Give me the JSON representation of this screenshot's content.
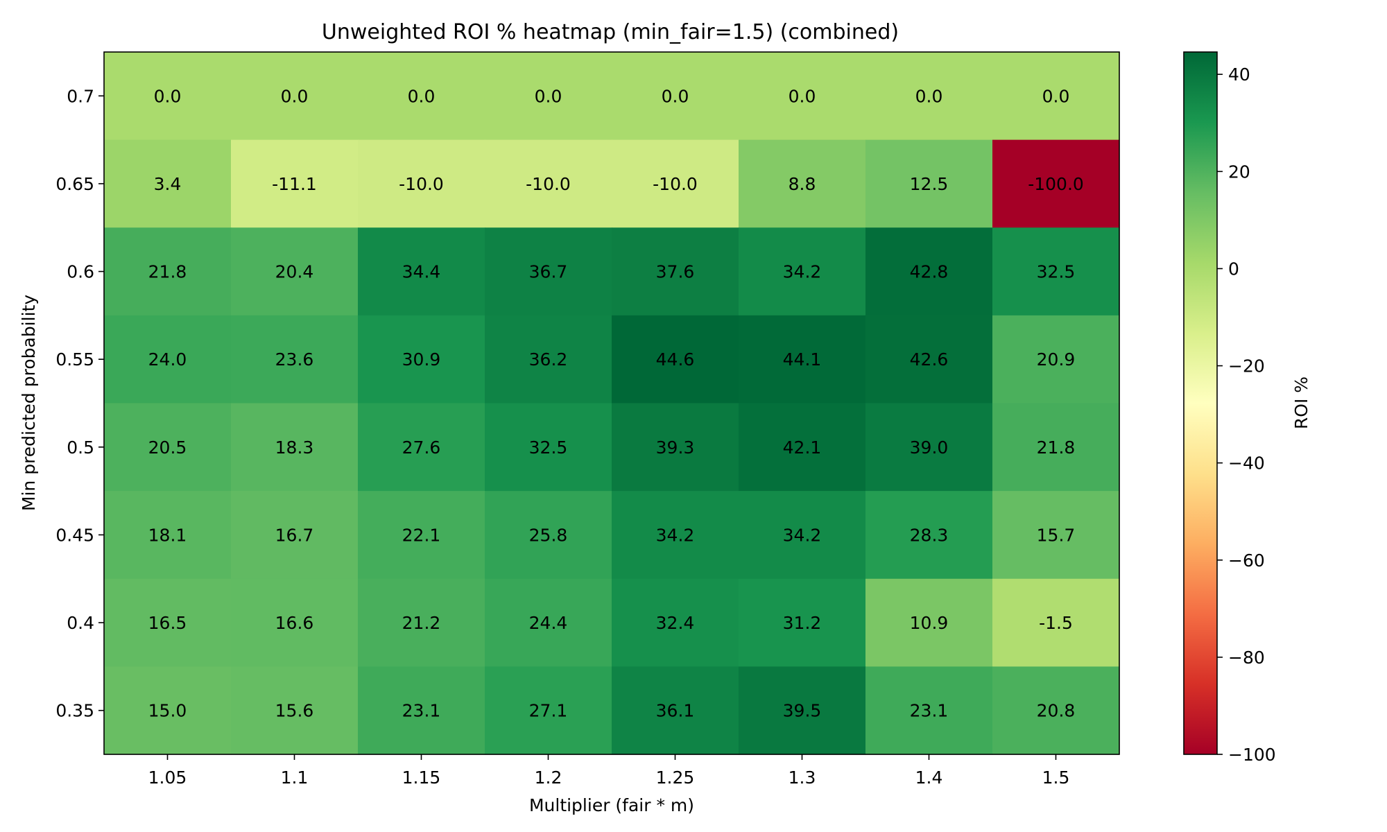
{
  "chart_data": {
    "type": "heatmap",
    "title": "Unweighted ROI % heatmap (min_fair=1.5) (combined)",
    "xlabel": "Multiplier (fair * m)",
    "ylabel": "Min predicted probability",
    "x_categories": [
      "1.05",
      "1.1",
      "1.15",
      "1.2",
      "1.25",
      "1.3",
      "1.4",
      "1.5"
    ],
    "y_categories": [
      "0.7",
      "0.65",
      "0.6",
      "0.55",
      "0.5",
      "0.45",
      "0.4",
      "0.35"
    ],
    "values": [
      [
        0.0,
        0.0,
        0.0,
        0.0,
        0.0,
        0.0,
        0.0,
        0.0
      ],
      [
        3.4,
        -11.1,
        -10.0,
        -10.0,
        -10.0,
        8.8,
        12.5,
        -100.0
      ],
      [
        21.8,
        20.4,
        34.4,
        36.7,
        37.6,
        34.2,
        42.8,
        32.5
      ],
      [
        24.0,
        23.6,
        30.9,
        36.2,
        44.6,
        44.1,
        42.6,
        20.9
      ],
      [
        20.5,
        18.3,
        27.6,
        32.5,
        39.3,
        42.1,
        39.0,
        21.8
      ],
      [
        18.1,
        16.7,
        22.1,
        25.8,
        34.2,
        34.2,
        28.3,
        15.7
      ],
      [
        16.5,
        16.6,
        21.2,
        24.4,
        32.4,
        31.2,
        10.9,
        -1.5
      ],
      [
        15.0,
        15.6,
        23.1,
        27.1,
        36.1,
        39.5,
        23.1,
        20.8
      ]
    ],
    "value_labels": [
      [
        "0.0",
        "0.0",
        "0.0",
        "0.0",
        "0.0",
        "0.0",
        "0.0",
        "0.0"
      ],
      [
        "3.4",
        "-11.1",
        "-10.0",
        "-10.0",
        "-10.0",
        "8.8",
        "12.5",
        "-100.0"
      ],
      [
        "21.8",
        "20.4",
        "34.4",
        "36.7",
        "37.6",
        "34.2",
        "42.8",
        "32.5"
      ],
      [
        "24.0",
        "23.6",
        "30.9",
        "36.2",
        "44.6",
        "44.1",
        "42.6",
        "20.9"
      ],
      [
        "20.5",
        "18.3",
        "27.6",
        "32.5",
        "39.3",
        "42.1",
        "39.0",
        "21.8"
      ],
      [
        "18.1",
        "16.7",
        "22.1",
        "25.8",
        "34.2",
        "34.2",
        "28.3",
        "15.7"
      ],
      [
        "16.5",
        "16.6",
        "21.2",
        "24.4",
        "32.4",
        "31.2",
        "10.9",
        "-1.5"
      ],
      [
        "15.0",
        "15.6",
        "23.1",
        "27.1",
        "36.1",
        "39.5",
        "23.1",
        "20.8"
      ]
    ],
    "colormap": "RdYlGn",
    "colormap_stops": [
      "#a50026",
      "#d73027",
      "#f46d43",
      "#fdae61",
      "#fee08b",
      "#ffffbf",
      "#d9ef8b",
      "#a6d96a",
      "#66bd63",
      "#1a9850",
      "#006837"
    ],
    "vmin": -100,
    "vmax": 44.6,
    "colorbar": {
      "label": "ROI %",
      "ticks": [
        40,
        20,
        0,
        -20,
        -40,
        -60,
        -80,
        -100
      ],
      "tick_labels": [
        "40",
        "20",
        "0",
        "−20",
        "−40",
        "−60",
        "−80",
        "−100"
      ]
    }
  }
}
